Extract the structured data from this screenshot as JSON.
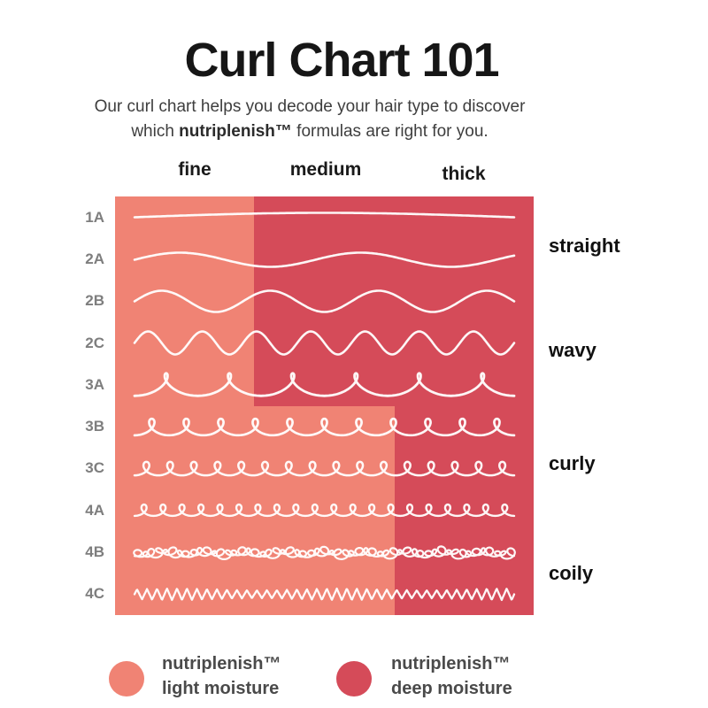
{
  "title": "Curl Chart 101",
  "subtitle": {
    "line1": "Our curl chart helps you decode your hair type to discover",
    "line2_pre": "which ",
    "line2_bold": "nutriplenish™",
    "line2_post": " formulas are right for you."
  },
  "colors": {
    "light_moisture": "#F08374",
    "deep_moisture": "#D54B59",
    "title_text": "#161616",
    "body_text": "#3E3E3E",
    "row_label_text": "#7E7E7E",
    "side_label_text": "#111111",
    "legend_text": "#4A4A4A",
    "curl_stroke": "#FFFFFF"
  },
  "legend": {
    "items": [
      {
        "name": "light",
        "swatch_color": "#F08374",
        "line1": "nutriplenish™",
        "line2": "light moisture"
      },
      {
        "name": "deep",
        "swatch_color": "#D54B59",
        "line1": "nutriplenish™",
        "line2": "deep moisture"
      }
    ]
  },
  "chart_data": {
    "type": "heatmap",
    "title": "Curl Chart 101",
    "columns": [
      "fine",
      "medium",
      "thick"
    ],
    "rows": [
      "1A",
      "2A",
      "2B",
      "2C",
      "3A",
      "3B",
      "3C",
      "4A",
      "4B",
      "4C"
    ],
    "curl_type_groups": [
      {
        "label": "straight",
        "rows": [
          "1A",
          "2A"
        ]
      },
      {
        "label": "wavy",
        "rows": [
          "2B",
          "2C",
          "3A"
        ]
      },
      {
        "label": "curly",
        "rows": [
          "3B",
          "3C",
          "4A"
        ]
      },
      {
        "label": "coily",
        "rows": [
          "4B",
          "4C"
        ]
      }
    ],
    "cell_product_map": {
      "light moisture": {
        "1A": [
          "fine"
        ],
        "2A": [
          "fine"
        ],
        "2B": [
          "fine"
        ],
        "2C": [
          "fine"
        ],
        "3A": [
          "fine"
        ],
        "3B": [
          "fine",
          "medium"
        ],
        "3C": [
          "fine",
          "medium"
        ],
        "4A": [
          "fine",
          "medium"
        ],
        "4B": [
          "fine",
          "medium"
        ],
        "4C": [
          "fine",
          "medium"
        ]
      },
      "deep moisture": {
        "1A": [
          "medium",
          "thick"
        ],
        "2A": [
          "medium",
          "thick"
        ],
        "2B": [
          "medium",
          "thick"
        ],
        "2C": [
          "medium",
          "thick"
        ],
        "3A": [
          "medium",
          "thick"
        ],
        "3B": [
          "thick"
        ],
        "3C": [
          "thick"
        ],
        "4A": [
          "thick"
        ],
        "4B": [
          "thick"
        ],
        "4C": [
          "thick"
        ]
      }
    },
    "patterns": [
      {
        "row": "1A",
        "type": "wave",
        "periods": 0.5,
        "amp": 5,
        "stroke_width": 2.6
      },
      {
        "row": "2A",
        "type": "wave",
        "periods": 2.1,
        "amp": 8,
        "stroke_width": 2.6
      },
      {
        "row": "2B",
        "type": "wave",
        "periods": 3.5,
        "amp": 12,
        "stroke_width": 2.6
      },
      {
        "row": "2C",
        "type": "wave",
        "periods": 7,
        "amp": 13,
        "stroke_width": 2.6
      },
      {
        "row": "3A",
        "type": "loops",
        "count": 6,
        "r": 15,
        "stroke_width": 2.8
      },
      {
        "row": "3B",
        "type": "loops",
        "count": 11,
        "r": 11,
        "stroke_width": 2.7
      },
      {
        "row": "3C",
        "type": "loops",
        "count": 16,
        "r": 9,
        "stroke_width": 2.5
      },
      {
        "row": "4A",
        "type": "loops",
        "count": 20,
        "r": 7.5,
        "stroke_width": 2.4
      },
      {
        "row": "4B",
        "type": "scribble",
        "count": 55,
        "r": 5,
        "stroke_width": 2.2
      },
      {
        "row": "4C",
        "type": "zigzag",
        "periods": 38,
        "amp": 5.5,
        "stroke_width": 2.3
      }
    ]
  }
}
